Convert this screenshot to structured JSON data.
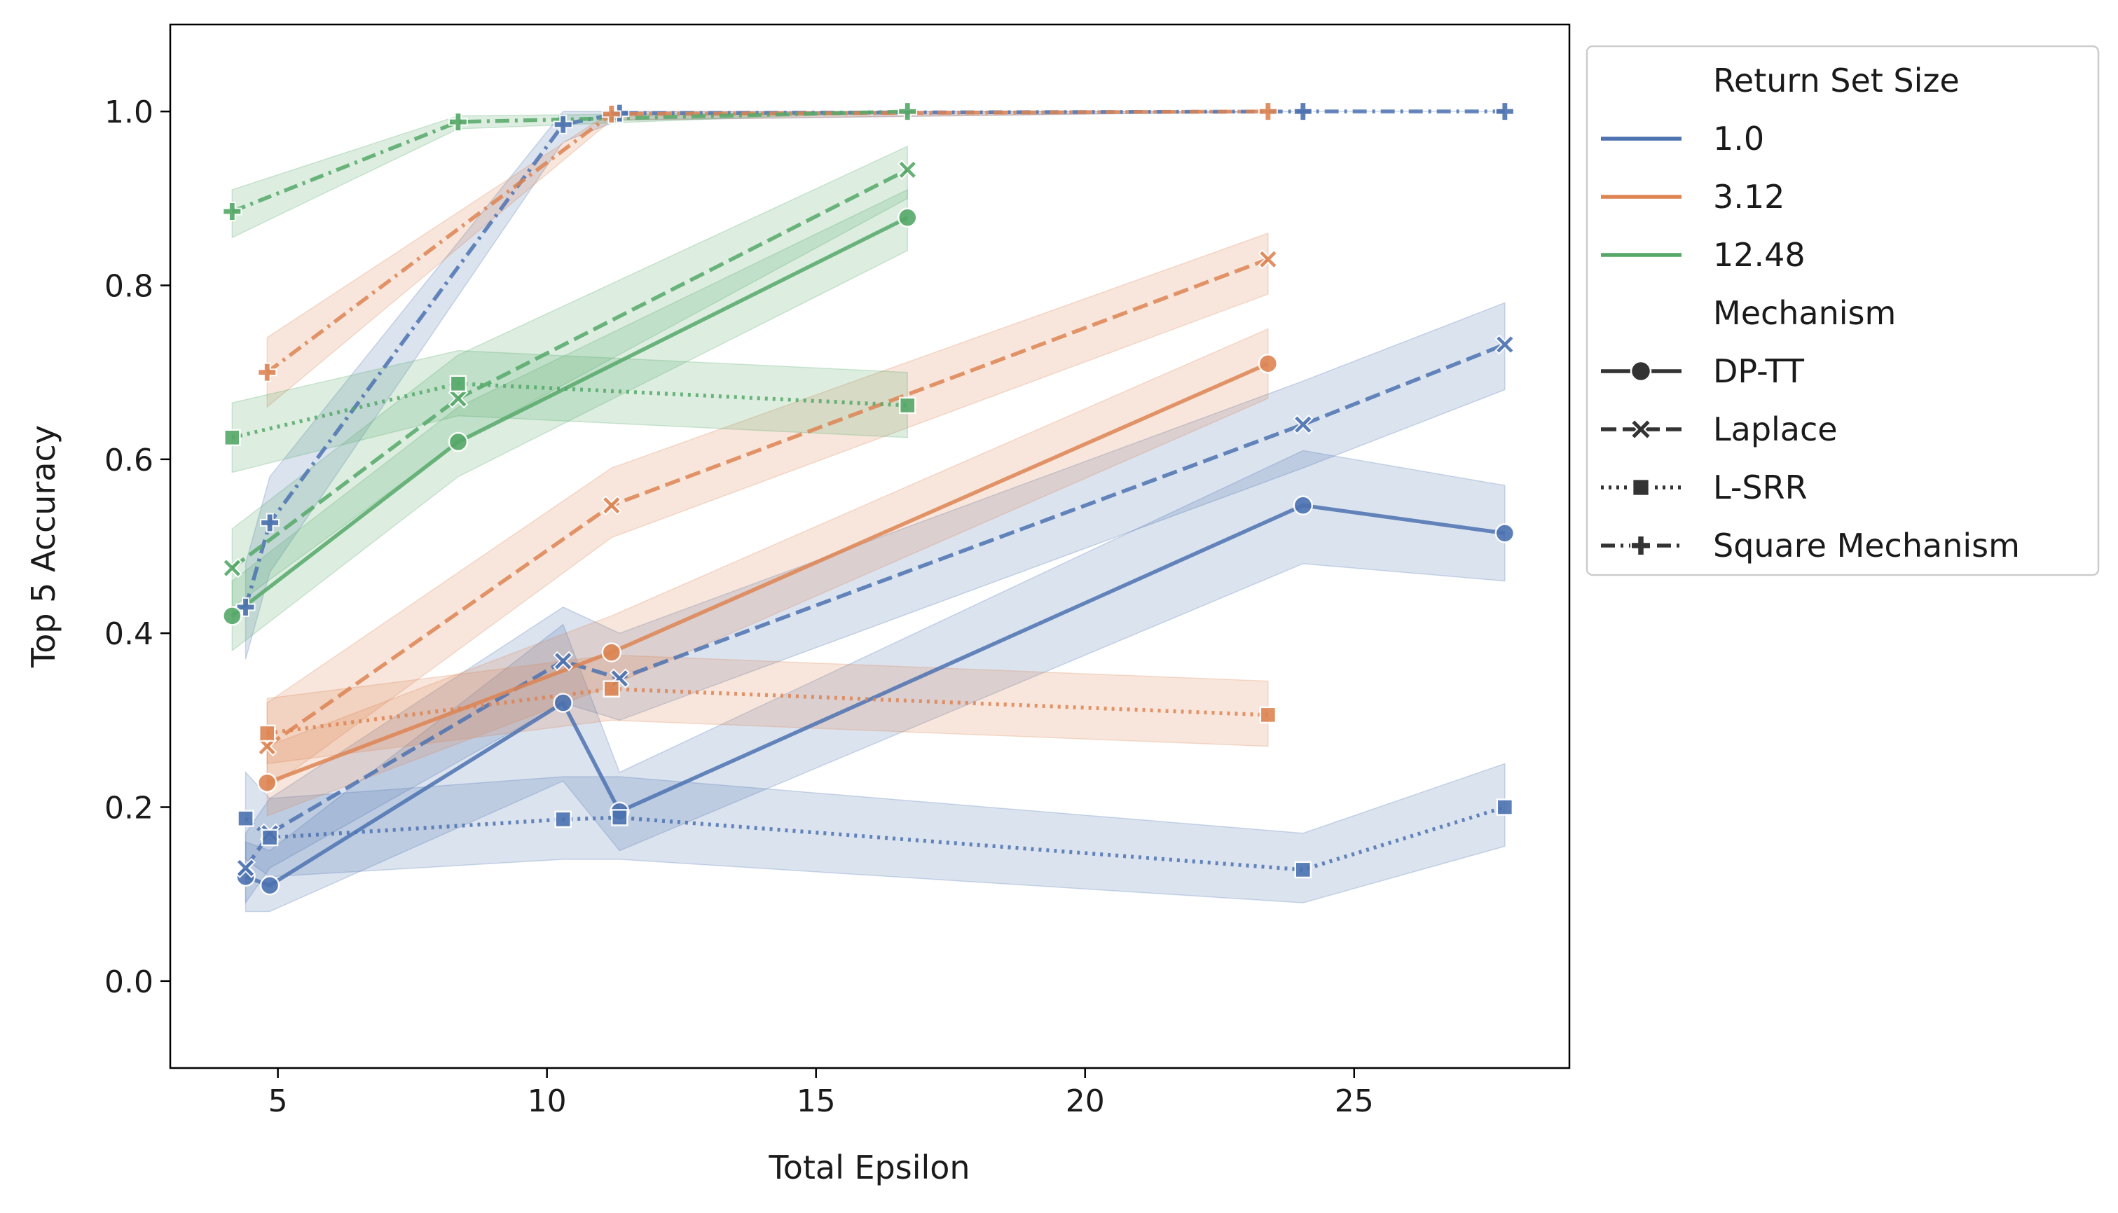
{
  "chart_data": {
    "type": "line",
    "title": "",
    "xlabel": "Total Epsilon",
    "ylabel": "Top 5 Accuracy",
    "xlim": [
      3.0,
      29.0
    ],
    "ylim": [
      -0.1,
      1.1
    ],
    "xticks": [
      5,
      10,
      15,
      20,
      25
    ],
    "xtick_labels": [
      "5",
      "10",
      "15",
      "20",
      "25"
    ],
    "yticks": [
      0.0,
      0.2,
      0.4,
      0.6,
      0.8,
      1.0
    ],
    "ytick_labels": [
      "0.0",
      "0.2",
      "0.4",
      "0.6",
      "0.8",
      "1.0"
    ],
    "grid": false,
    "legend": {
      "placement": "outside right, top",
      "hue_title": "Return Set Size",
      "style_title": "Mechanism",
      "hue_entries": [
        {
          "label": "1.0",
          "color": "#4c72b0"
        },
        {
          "label": "3.12",
          "color": "#dd8452"
        },
        {
          "label": "12.48",
          "color": "#55a868"
        }
      ],
      "style_entries": [
        {
          "label": "DP-TT",
          "dash": "solid",
          "marker": "circle"
        },
        {
          "label": "Laplace",
          "dash": "dashed",
          "marker": "x"
        },
        {
          "label": "L-SRR",
          "dash": "dotted",
          "marker": "square"
        },
        {
          "label": "Square Mechanism",
          "dash": "dashdot",
          "marker": "plus"
        }
      ]
    },
    "series": [
      {
        "hue": "1.0",
        "mechanism": "DP-TT",
        "color": "#4c72b0",
        "dash": "solid",
        "marker": "circle",
        "points": [
          [
            4.4,
            0.12,
            0.08,
            0.16
          ],
          [
            4.85,
            0.11,
            0.08,
            0.15
          ],
          [
            10.3,
            0.32,
            0.23,
            0.41
          ],
          [
            11.35,
            0.195,
            0.15,
            0.24
          ],
          [
            24.05,
            0.547,
            0.48,
            0.61
          ],
          [
            27.8,
            0.515,
            0.46,
            0.57
          ]
        ]
      },
      {
        "hue": "1.0",
        "mechanism": "Laplace",
        "color": "#4c72b0",
        "dash": "dashed",
        "marker": "x",
        "points": [
          [
            4.4,
            0.13,
            0.09,
            0.17
          ],
          [
            4.85,
            0.17,
            0.13,
            0.21
          ],
          [
            10.3,
            0.368,
            0.32,
            0.43
          ],
          [
            11.35,
            0.348,
            0.3,
            0.4
          ],
          [
            24.05,
            0.64,
            0.59,
            0.69
          ],
          [
            27.8,
            0.732,
            0.68,
            0.78
          ]
        ]
      },
      {
        "hue": "1.0",
        "mechanism": "L-SRR",
        "color": "#4c72b0",
        "dash": "dotted",
        "marker": "square",
        "points": [
          [
            4.4,
            0.187,
            0.14,
            0.24
          ],
          [
            4.85,
            0.165,
            0.12,
            0.21
          ],
          [
            10.3,
            0.186,
            0.14,
            0.235
          ],
          [
            11.35,
            0.188,
            0.14,
            0.235
          ],
          [
            24.05,
            0.128,
            0.09,
            0.17
          ],
          [
            27.8,
            0.2,
            0.155,
            0.25
          ]
        ]
      },
      {
        "hue": "1.0",
        "mechanism": "Square Mechanism",
        "color": "#4c72b0",
        "dash": "dashdot",
        "marker": "plus",
        "points": [
          [
            4.4,
            0.43,
            0.37,
            0.48
          ],
          [
            4.85,
            0.527,
            0.47,
            0.58
          ],
          [
            10.3,
            0.985,
            0.965,
            1.0
          ],
          [
            11.35,
            0.998,
            0.99,
            1.0
          ],
          [
            24.05,
            1.0,
            1.0,
            1.0
          ],
          [
            27.8,
            1.0,
            1.0,
            1.0
          ]
        ]
      },
      {
        "hue": "3.12",
        "mechanism": "DP-TT",
        "color": "#dd8452",
        "dash": "solid",
        "marker": "circle",
        "points": [
          [
            4.8,
            0.228,
            0.19,
            0.27
          ],
          [
            11.2,
            0.378,
            0.34,
            0.42
          ],
          [
            23.4,
            0.71,
            0.67,
            0.75
          ]
        ]
      },
      {
        "hue": "3.12",
        "mechanism": "Laplace",
        "color": "#dd8452",
        "dash": "dashed",
        "marker": "x",
        "points": [
          [
            4.8,
            0.27,
            0.22,
            0.32
          ],
          [
            11.2,
            0.547,
            0.51,
            0.59
          ],
          [
            23.4,
            0.83,
            0.79,
            0.86
          ]
        ]
      },
      {
        "hue": "3.12",
        "mechanism": "L-SRR",
        "color": "#dd8452",
        "dash": "dotted",
        "marker": "square",
        "points": [
          [
            4.8,
            0.285,
            0.25,
            0.325
          ],
          [
            11.2,
            0.336,
            0.3,
            0.375
          ],
          [
            23.4,
            0.306,
            0.27,
            0.345
          ]
        ]
      },
      {
        "hue": "3.12",
        "mechanism": "Square Mechanism",
        "color": "#dd8452",
        "dash": "dashdot",
        "marker": "plus",
        "points": [
          [
            4.8,
            0.7,
            0.66,
            0.74
          ],
          [
            11.2,
            0.997,
            0.99,
            1.0
          ],
          [
            23.4,
            1.0,
            1.0,
            1.0
          ]
        ]
      },
      {
        "hue": "12.48",
        "mechanism": "DP-TT",
        "color": "#55a868",
        "dash": "solid",
        "marker": "circle",
        "points": [
          [
            4.15,
            0.42,
            0.38,
            0.46
          ],
          [
            8.35,
            0.62,
            0.58,
            0.66
          ],
          [
            16.7,
            0.878,
            0.84,
            0.91
          ]
        ]
      },
      {
        "hue": "12.48",
        "mechanism": "Laplace",
        "color": "#55a868",
        "dash": "dashed",
        "marker": "x",
        "points": [
          [
            4.15,
            0.475,
            0.43,
            0.52
          ],
          [
            8.35,
            0.67,
            0.62,
            0.72
          ],
          [
            16.7,
            0.933,
            0.9,
            0.96
          ]
        ]
      },
      {
        "hue": "12.48",
        "mechanism": "L-SRR",
        "color": "#55a868",
        "dash": "dotted",
        "marker": "square",
        "points": [
          [
            4.15,
            0.625,
            0.585,
            0.665
          ],
          [
            8.35,
            0.687,
            0.65,
            0.725
          ],
          [
            16.7,
            0.662,
            0.625,
            0.7
          ]
        ]
      },
      {
        "hue": "12.48",
        "mechanism": "Square Mechanism",
        "color": "#55a868",
        "dash": "dashdot",
        "marker": "plus",
        "points": [
          [
            4.15,
            0.885,
            0.855,
            0.91
          ],
          [
            8.35,
            0.988,
            0.98,
            0.995
          ],
          [
            16.7,
            1.0,
            1.0,
            1.0
          ]
        ]
      }
    ]
  }
}
